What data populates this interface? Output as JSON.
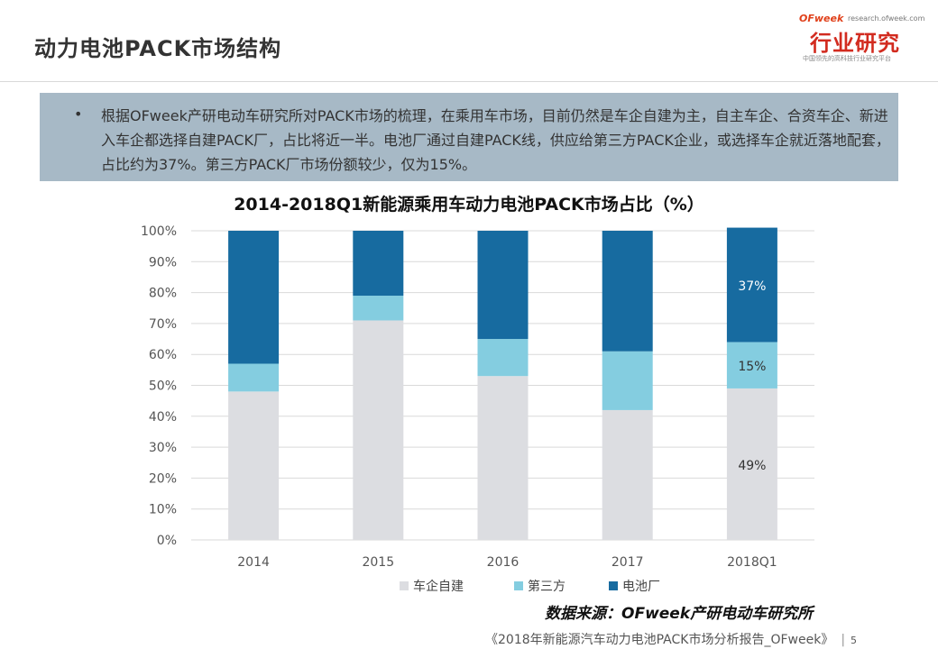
{
  "slide": {
    "title": "动力电池PACK市场结构",
    "logo": {
      "brand": "OFweek",
      "site": "research.ofweek.com",
      "main": "行业研究",
      "sub": "中国领先的高科技行业研究平台"
    },
    "callout": {
      "bullet": "•",
      "text": "根据OFweek产研电动车研究所对PACK市场的梳理，在乘用车市场，目前仍然是车企自建为主，自主车企、合资车企、新进入车企都选择自建PACK厂，占比将近一半。电池厂通过自建PACK线，供应给第三方PACK企业，或选择车企就近落地配套，占比约为37%。第三方PACK厂市场份额较少，仅为15%。"
    },
    "source": "数据来源：OFweek产研电动车研究所",
    "footer": {
      "text": "《2018年新能源汽车动力电池PACK市场分析报告_OFweek》",
      "page": "5"
    }
  },
  "chart_data": {
    "type": "bar",
    "stacked": true,
    "title": "2014-2018Q1新能源乘用车动力电池PACK市场占比（%）",
    "categories": [
      "2014",
      "2015",
      "2016",
      "2017",
      "2018Q1"
    ],
    "series": [
      {
        "name": "车企自建",
        "color": "#dcdde1",
        "values": [
          48,
          71,
          53,
          42,
          49
        ]
      },
      {
        "name": "第三方",
        "color": "#84cde0",
        "values": [
          9,
          8,
          12,
          19,
          15
        ]
      },
      {
        "name": "电池厂",
        "color": "#176ba0",
        "values": [
          43,
          21,
          35,
          39,
          37
        ]
      }
    ],
    "data_labels": [
      {
        "category": "2018Q1",
        "series": "车企自建",
        "text": "49%"
      },
      {
        "category": "2018Q1",
        "series": "第三方",
        "text": "15%"
      },
      {
        "category": "2018Q1",
        "series": "电池厂",
        "text": "37%"
      }
    ],
    "yticks": [
      "0%",
      "10%",
      "20%",
      "30%",
      "40%",
      "50%",
      "60%",
      "70%",
      "80%",
      "90%",
      "100%"
    ],
    "ylim": [
      0,
      100
    ],
    "grid": true,
    "legend": "bottom"
  }
}
